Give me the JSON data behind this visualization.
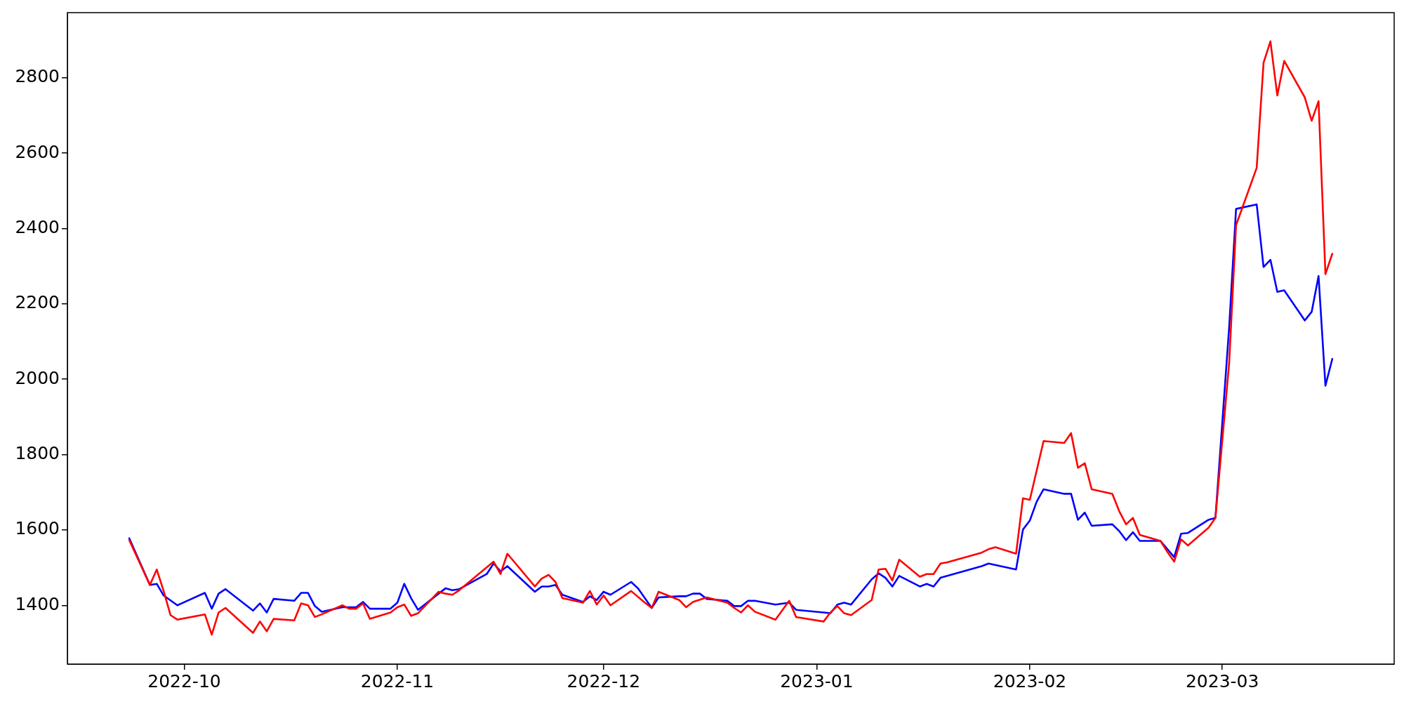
{
  "chart_data": {
    "type": "line",
    "xlim": [
      "2022-09-14",
      "2023-03-26"
    ],
    "xticks": [
      "2022-10",
      "2022-11",
      "2022-12",
      "2023-01",
      "2023-02",
      "2023-03"
    ],
    "ylim": [
      1244,
      2973
    ],
    "yticks": [
      1400,
      1600,
      1800,
      2000,
      2200,
      2400,
      2600,
      2800
    ],
    "grid": false,
    "legend": false,
    "marker": "none",
    "line_style": "solid",
    "series": [
      {
        "color": "#ff0000",
        "x": [
          "2022-09-23",
          "2022-09-26",
          "2022-09-27",
          "2022-09-28",
          "2022-09-29",
          "2022-09-30",
          "2022-10-04",
          "2022-10-05",
          "2022-10-06",
          "2022-10-07",
          "2022-10-11",
          "2022-10-12",
          "2022-10-13",
          "2022-10-14",
          "2022-10-17",
          "2022-10-18",
          "2022-10-19",
          "2022-10-20",
          "2022-10-21",
          "2022-10-24",
          "2022-10-25",
          "2022-10-26",
          "2022-10-27",
          "2022-10-28",
          "2022-10-31",
          "2022-11-01",
          "2022-11-02",
          "2022-11-03",
          "2022-11-04",
          "2022-11-07",
          "2022-11-08",
          "2022-11-09",
          "2022-11-10",
          "2022-11-15",
          "2022-11-16",
          "2022-11-17",
          "2022-11-21",
          "2022-11-22",
          "2022-11-23",
          "2022-11-24",
          "2022-11-25",
          "2022-11-28",
          "2022-11-29",
          "2022-11-30",
          "2022-12-01",
          "2022-12-02",
          "2022-12-05",
          "2022-12-07",
          "2022-12-08",
          "2022-12-09",
          "2022-12-12",
          "2022-12-13",
          "2022-12-14",
          "2022-12-16",
          "2022-12-19",
          "2022-12-20",
          "2022-12-21",
          "2022-12-22",
          "2022-12-23",
          "2022-12-26",
          "2022-12-28",
          "2022-12-29",
          "2023-01-02",
          "2023-01-03",
          "2023-01-04",
          "2023-01-05",
          "2023-01-06",
          "2023-01-09",
          "2023-01-10",
          "2023-01-11",
          "2023-01-12",
          "2023-01-13",
          "2023-01-16",
          "2023-01-17",
          "2023-01-18",
          "2023-01-19",
          "2023-01-20",
          "2023-01-25",
          "2023-01-26",
          "2023-01-27",
          "2023-01-30",
          "2023-01-31",
          "2023-02-01",
          "2023-02-03",
          "2023-02-06",
          "2023-02-07",
          "2023-02-08",
          "2023-02-09",
          "2023-02-10",
          "2023-02-13",
          "2023-02-14",
          "2023-02-15",
          "2023-02-16",
          "2023-02-17",
          "2023-02-20",
          "2023-02-21",
          "2023-02-22",
          "2023-02-23",
          "2023-02-24",
          "2023-02-27",
          "2023-02-28",
          "2023-03-02",
          "2023-03-03",
          "2023-03-06",
          "2023-03-07",
          "2023-03-08",
          "2023-03-09",
          "2023-03-10",
          "2023-03-13",
          "2023-03-14",
          "2023-03-15",
          "2023-03-16",
          "2023-03-17"
        ],
        "values": [
          1573,
          1454,
          1495,
          1438,
          1374,
          1362,
          1376,
          1322,
          1381,
          1393,
          1327,
          1357,
          1331,
          1364,
          1360,
          1405,
          1400,
          1369,
          1376,
          1400,
          1391,
          1391,
          1405,
          1364,
          1381,
          1395,
          1402,
          1372,
          1379,
          1436,
          1431,
          1428,
          1440,
          1516,
          1483,
          1537,
          1450,
          1471,
          1481,
          1462,
          1419,
          1407,
          1438,
          1402,
          1426,
          1400,
          1438,
          1407,
          1393,
          1436,
          1414,
          1395,
          1409,
          1421,
          1407,
          1393,
          1381,
          1400,
          1383,
          1362,
          1412,
          1369,
          1357,
          1381,
          1398,
          1379,
          1374,
          1414,
          1495,
          1497,
          1466,
          1521,
          1476,
          1483,
          1483,
          1511,
          1514,
          1540,
          1549,
          1554,
          1537,
          1684,
          1680,
          1836,
          1831,
          1857,
          1765,
          1777,
          1708,
          1696,
          1650,
          1615,
          1632,
          1587,
          1571,
          1542,
          1516,
          1575,
          1559,
          1606,
          1632,
          2044,
          2409,
          2561,
          2840,
          2897,
          2753,
          2845,
          2748,
          2686,
          2738,
          2279,
          2333
        ]
      },
      {
        "color": "#0000ff",
        "x": [
          "2022-09-23",
          "2022-09-26",
          "2022-09-27",
          "2022-09-28",
          "2022-09-30",
          "2022-10-04",
          "2022-10-05",
          "2022-10-06",
          "2022-10-07",
          "2022-10-11",
          "2022-10-12",
          "2022-10-13",
          "2022-10-14",
          "2022-10-17",
          "2022-10-18",
          "2022-10-19",
          "2022-10-20",
          "2022-10-21",
          "2022-10-24",
          "2022-10-26",
          "2022-10-27",
          "2022-10-28",
          "2022-10-31",
          "2022-11-01",
          "2022-11-02",
          "2022-11-03",
          "2022-11-04",
          "2022-11-07",
          "2022-11-08",
          "2022-11-09",
          "2022-11-10",
          "2022-11-14",
          "2022-11-15",
          "2022-11-16",
          "2022-11-17",
          "2022-11-21",
          "2022-11-22",
          "2022-11-23",
          "2022-11-24",
          "2022-11-25",
          "2022-11-28",
          "2022-11-29",
          "2022-11-30",
          "2022-12-01",
          "2022-12-02",
          "2022-12-05",
          "2022-12-06",
          "2022-12-08",
          "2022-12-09",
          "2022-12-12",
          "2022-12-13",
          "2022-12-14",
          "2022-12-15",
          "2022-12-16",
          "2022-12-19",
          "2022-12-20",
          "2022-12-21",
          "2022-12-22",
          "2022-12-23",
          "2022-12-26",
          "2022-12-28",
          "2022-12-29",
          "2023-01-02",
          "2023-01-03",
          "2023-01-04",
          "2023-01-05",
          "2023-01-06",
          "2023-01-09",
          "2023-01-10",
          "2023-01-11",
          "2023-01-12",
          "2023-01-13",
          "2023-01-16",
          "2023-01-17",
          "2023-01-18",
          "2023-01-19",
          "2023-01-25",
          "2023-01-26",
          "2023-01-30",
          "2023-01-31",
          "2023-02-01",
          "2023-02-02",
          "2023-02-03",
          "2023-02-06",
          "2023-02-07",
          "2023-02-08",
          "2023-02-09",
          "2023-02-10",
          "2023-02-13",
          "2023-02-14",
          "2023-02-15",
          "2023-02-16",
          "2023-02-17",
          "2023-02-20",
          "2023-02-22",
          "2023-02-23",
          "2023-02-24",
          "2023-02-27",
          "2023-02-28",
          "2023-03-02",
          "2023-03-03",
          "2023-03-06",
          "2023-03-07",
          "2023-03-08",
          "2023-03-09",
          "2023-03-10",
          "2023-03-13",
          "2023-03-14",
          "2023-03-15",
          "2023-03-16",
          "2023-03-17"
        ],
        "values": [
          1578,
          1454,
          1457,
          1426,
          1400,
          1433,
          1391,
          1431,
          1443,
          1386,
          1405,
          1381,
          1417,
          1412,
          1433,
          1433,
          1398,
          1383,
          1395,
          1395,
          1409,
          1391,
          1391,
          1407,
          1457,
          1419,
          1388,
          1431,
          1445,
          1440,
          1443,
          1483,
          1511,
          1490,
          1504,
          1436,
          1450,
          1450,
          1454,
          1428,
          1409,
          1424,
          1414,
          1436,
          1428,
          1462,
          1445,
          1393,
          1421,
          1424,
          1424,
          1431,
          1431,
          1417,
          1412,
          1398,
          1398,
          1412,
          1412,
          1402,
          1407,
          1388,
          1381,
          1379,
          1402,
          1407,
          1402,
          1469,
          1485,
          1473,
          1450,
          1478,
          1450,
          1457,
          1450,
          1473,
          1504,
          1511,
          1495,
          1601,
          1625,
          1675,
          1708,
          1696,
          1696,
          1627,
          1646,
          1611,
          1615,
          1597,
          1573,
          1594,
          1571,
          1571,
          1528,
          1590,
          1592,
          1627,
          1632,
          2139,
          2452,
          2464,
          2298,
          2317,
          2232,
          2236,
          2156,
          2179,
          2274,
          1983,
          2054
        ]
      }
    ]
  }
}
